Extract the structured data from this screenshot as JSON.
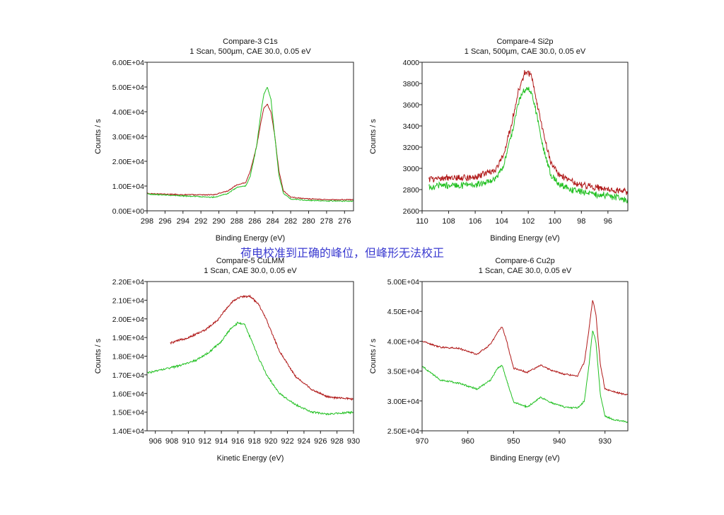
{
  "caption": "荷电校准到正确的峰位，但峰形无法校正",
  "colors": {
    "red": "#b01818",
    "green": "#22c022",
    "axis": "#222222"
  },
  "chart_data": [
    {
      "type": "line",
      "title": "Compare-3 C1s",
      "subtitle": "1 Scan,  500µm,  CAE 30.0,  0.05 eV",
      "xlabel": "Binding Energy (eV)",
      "ylabel": "Counts / s",
      "xlim": [
        298,
        275
      ],
      "ylim": [
        0,
        60000
      ],
      "xticks": [
        298,
        296,
        294,
        292,
        290,
        288,
        286,
        284,
        282,
        280,
        278,
        276
      ],
      "yticks": [
        0,
        10000,
        20000,
        30000,
        40000,
        50000,
        60000
      ],
      "ytick_labels": [
        "0.00E+00",
        "1.00E+04",
        "2.00E+04",
        "3.00E+04",
        "4.00E+04",
        "5.00E+04",
        "6.00E+04"
      ],
      "noise": 0.003,
      "series": [
        {
          "name": "red",
          "color": "#b01818",
          "x": [
            298,
            294,
            290.5,
            289,
            288,
            287,
            286.5,
            285.8,
            285.3,
            285,
            284.6,
            284.2,
            283.8,
            283.3,
            282.8,
            282,
            280,
            278,
            275
          ],
          "y": [
            7000,
            6500,
            6500,
            8000,
            10500,
            11500,
            16000,
            26000,
            36000,
            41500,
            43000,
            40000,
            31000,
            16000,
            8000,
            5500,
            4800,
            4500,
            4500
          ]
        },
        {
          "name": "green",
          "color": "#22c022",
          "x": [
            298,
            294,
            290.5,
            289,
            288,
            287,
            286.5,
            285.8,
            285.3,
            285,
            284.6,
            284.2,
            283.8,
            283.3,
            282.8,
            282,
            280,
            278,
            275
          ],
          "y": [
            6800,
            6000,
            5500,
            7000,
            9500,
            10000,
            14000,
            26000,
            40000,
            47000,
            50000,
            45000,
            31000,
            14000,
            7000,
            4800,
            4200,
            4000,
            3900
          ]
        }
      ]
    },
    {
      "type": "line",
      "title": "Compare-4 Si2p",
      "subtitle": "1 Scan,  500µm,  CAE 30.0,  0.05 eV",
      "xlabel": "Binding Energy (eV)",
      "ylabel": "Counts / s",
      "xlim": [
        110,
        94.5
      ],
      "ylim": [
        2600,
        4000
      ],
      "xticks": [
        110,
        108,
        106,
        104,
        102,
        100,
        98,
        96
      ],
      "yticks": [
        2600,
        2800,
        3000,
        3200,
        3400,
        3600,
        3800,
        4000
      ],
      "ytick_labels": [
        "2600",
        "2800",
        "3000",
        "3200",
        "3400",
        "3600",
        "3800",
        "4000"
      ],
      "noise": 0.02,
      "series": [
        {
          "name": "red",
          "color": "#b01818",
          "x": [
            109.5,
            108,
            106,
            104.5,
            103.8,
            103.2,
            102.7,
            102.2,
            101.8,
            101.4,
            100.9,
            100.3,
            99.6,
            98.5,
            97,
            95.5,
            94.5
          ],
          "y": [
            2900,
            2910,
            2920,
            2980,
            3150,
            3450,
            3750,
            3920,
            3880,
            3650,
            3350,
            3050,
            2930,
            2860,
            2820,
            2790,
            2780
          ]
        },
        {
          "name": "green",
          "color": "#22c022",
          "x": [
            109.5,
            108,
            106,
            104.5,
            103.8,
            103.2,
            102.7,
            102.2,
            101.8,
            101.4,
            100.9,
            100.3,
            99.6,
            98.5,
            97,
            95.5,
            94.5
          ],
          "y": [
            2830,
            2840,
            2840,
            2900,
            3050,
            3350,
            3640,
            3760,
            3740,
            3520,
            3200,
            2940,
            2840,
            2790,
            2760,
            2730,
            2700
          ]
        }
      ]
    },
    {
      "type": "line",
      "title": "Compare-5 CuLMM",
      "subtitle": "1 Scan,  CAE 30.0,  0.05 eV",
      "xlabel": "Kinetic Energy (eV)",
      "ylabel": "Counts / s",
      "xlim": [
        905,
        930
      ],
      "ylim": [
        14000,
        22000
      ],
      "xticks": [
        906,
        908,
        910,
        912,
        914,
        916,
        918,
        920,
        922,
        924,
        926,
        928,
        930
      ],
      "yticks": [
        14000,
        15000,
        16000,
        17000,
        18000,
        19000,
        20000,
        21000,
        22000
      ],
      "ytick_labels": [
        "1.40E+04",
        "1.50E+04",
        "1.60E+04",
        "1.70E+04",
        "1.80E+04",
        "1.90E+04",
        "2.00E+04",
        "2.10E+04",
        "2.20E+04"
      ],
      "noise": 0.006,
      "series": [
        {
          "name": "red",
          "color": "#b01818",
          "x": [
            907.8,
            910,
            912,
            913.5,
            914.5,
            915.5,
            916.5,
            917.5,
            918.5,
            919.5,
            921,
            923,
            925,
            927,
            930
          ],
          "y": [
            18700,
            19000,
            19400,
            19900,
            20500,
            21000,
            21200,
            21200,
            20800,
            19900,
            18300,
            16900,
            16200,
            15800,
            15700
          ]
        },
        {
          "name": "green",
          "color": "#22c022",
          "x": [
            905,
            907,
            909,
            911,
            912.5,
            914,
            915,
            916,
            916.8,
            917.5,
            918.5,
            919.5,
            921,
            923,
            925,
            927,
            930
          ],
          "y": [
            17100,
            17300,
            17500,
            17800,
            18200,
            18800,
            19400,
            19800,
            19700,
            19000,
            17900,
            17000,
            16000,
            15400,
            15000,
            14900,
            15000
          ]
        }
      ]
    },
    {
      "type": "line",
      "title": "Compare-6 Cu2p",
      "subtitle": "1 Scan,  CAE 30.0,  0.05 eV",
      "xlabel": "Binding Energy (eV)",
      "ylabel": "Counts / s",
      "xlim": [
        970,
        925
      ],
      "ylim": [
        25000,
        50000
      ],
      "xticks": [
        970,
        960,
        950,
        940,
        930
      ],
      "yticks": [
        25000,
        30000,
        35000,
        40000,
        45000,
        50000
      ],
      "ytick_labels": [
        "2.50E+04",
        "3.00E+04",
        "3.50E+04",
        "4.00E+04",
        "4.50E+04",
        "5.00E+04"
      ],
      "noise": 0.005,
      "series": [
        {
          "name": "red",
          "color": "#b01818",
          "x": [
            970,
            966,
            962,
            958,
            955,
            953.5,
            952.5,
            951.5,
            950,
            947,
            944,
            942,
            939,
            936,
            934.5,
            933.5,
            932.7,
            932,
            931,
            930,
            928,
            925
          ],
          "y": [
            40000,
            39000,
            38800,
            37800,
            39500,
            41500,
            42500,
            40000,
            35500,
            34800,
            36000,
            35200,
            34500,
            34200,
            36500,
            42000,
            47000,
            44500,
            36000,
            32000,
            31500,
            31000
          ]
        },
        {
          "name": "green",
          "color": "#22c022",
          "x": [
            970,
            966,
            962,
            958,
            955,
            953.5,
            952.5,
            951.5,
            950,
            947,
            944,
            942,
            939,
            936,
            934.5,
            933.5,
            932.7,
            932,
            931,
            930,
            928,
            925
          ],
          "y": [
            35800,
            33500,
            33000,
            32000,
            33500,
            35500,
            36000,
            33500,
            29800,
            29000,
            30600,
            29800,
            29000,
            28800,
            30000,
            36000,
            41800,
            40000,
            31000,
            27500,
            26800,
            26500
          ]
        }
      ]
    }
  ]
}
